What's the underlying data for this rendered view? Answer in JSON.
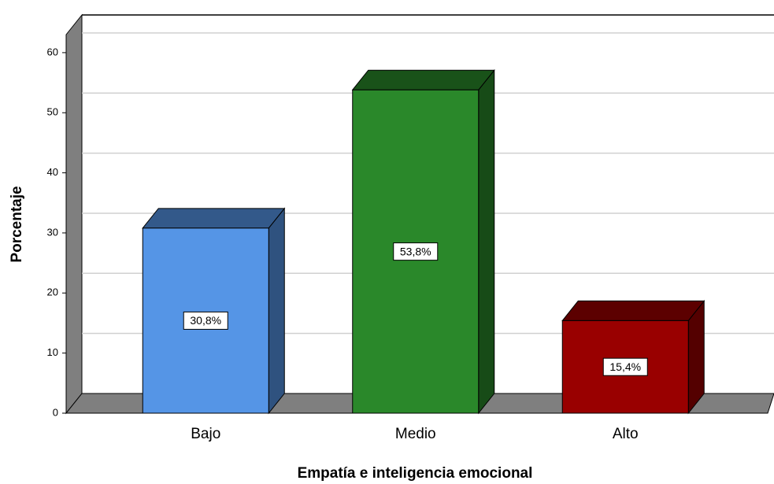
{
  "chart_data": {
    "type": "bar3d",
    "x_label": "Empatía e inteligencia emocional",
    "y_label": "Porcentaje",
    "categories": [
      "Bajo",
      "Medio",
      "Alto"
    ],
    "values": [
      30.8,
      53.8,
      15.4
    ],
    "value_labels": [
      "30,8%",
      "53,8%",
      "15,4%"
    ],
    "colors": [
      "#5595e6",
      "#2a882a",
      "#990000"
    ],
    "ylim": [
      0,
      63
    ],
    "yticks": [
      0,
      10,
      20,
      30,
      40,
      50,
      60
    ],
    "grid": true
  }
}
